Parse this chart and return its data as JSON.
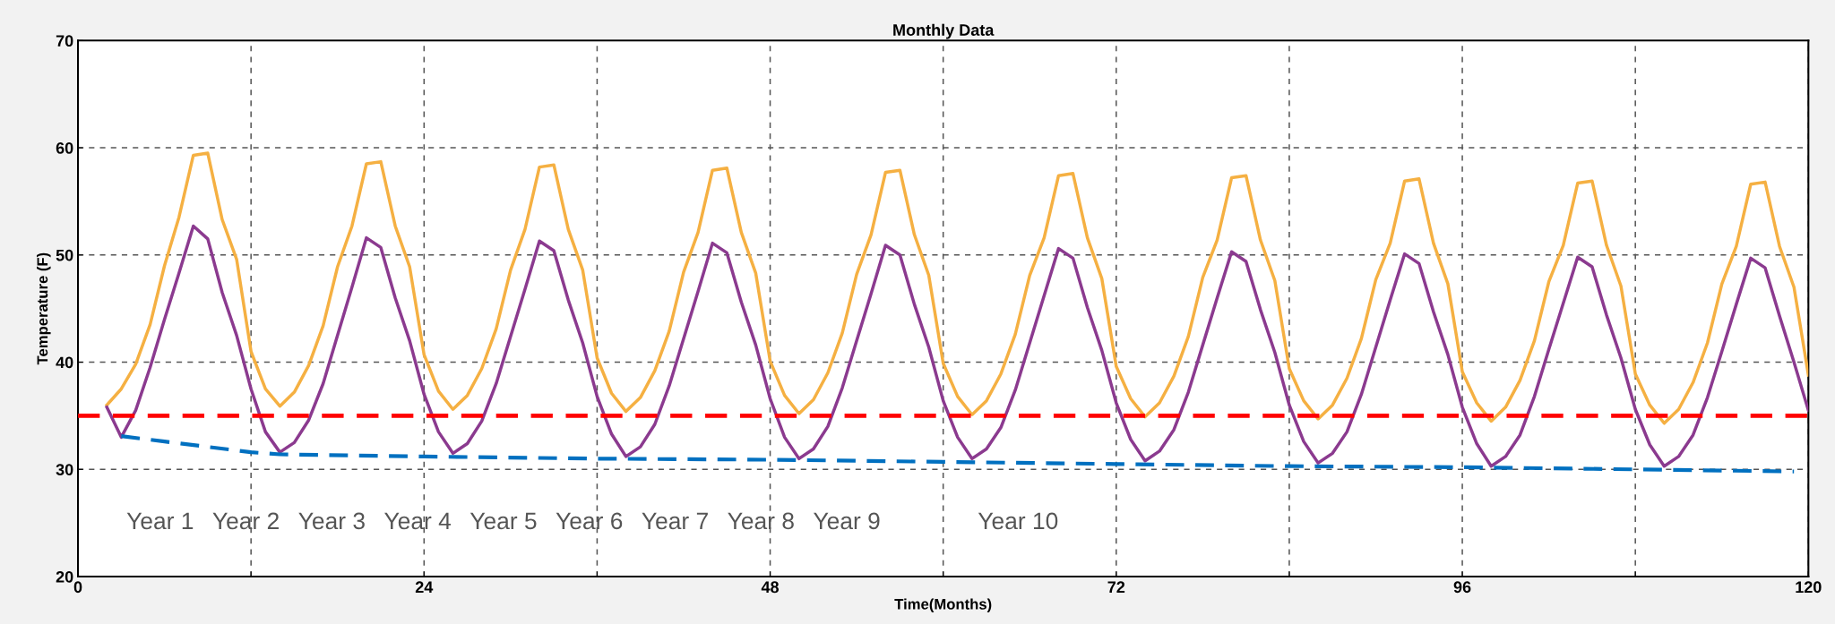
{
  "chart_data": {
    "type": "line",
    "title": "Monthly Data",
    "xlabel": "Time(Months)",
    "ylabel": "Temperature (F)",
    "xlim": [
      0,
      120
    ],
    "ylim": [
      20,
      70
    ],
    "xticks": [
      0,
      {
        "value": 12,
        "label": null
      },
      24,
      {
        "value": 36,
        "label": null
      },
      48,
      {
        "value": 60,
        "label": null
      },
      72,
      {
        "value": 84,
        "label": null
      },
      96,
      {
        "value": 108,
        "label": null
      },
      120
    ],
    "yticks": [
      20,
      30,
      40,
      50,
      60,
      70
    ],
    "grid": true,
    "legend": false,
    "marker": "none",
    "series": [
      {
        "color": "#f5b042",
        "line_style": "solid",
        "x": [
          2,
          3,
          4,
          5,
          6,
          7,
          8,
          9,
          10,
          11,
          12,
          13,
          14,
          15,
          16,
          17,
          18,
          19,
          20,
          21,
          22,
          23,
          24,
          25,
          26,
          27,
          28,
          29,
          30,
          31,
          32,
          33,
          34,
          35,
          36,
          37,
          38,
          39,
          40,
          41,
          42,
          43,
          44,
          45,
          46,
          47,
          48,
          49,
          50,
          51,
          52,
          53,
          54,
          55,
          56,
          57,
          58,
          59,
          60,
          61,
          62,
          63,
          64,
          65,
          66,
          67,
          68,
          69,
          70,
          71,
          72,
          73,
          74,
          75,
          76,
          77,
          78,
          79,
          80,
          81,
          82,
          83,
          84,
          85,
          86,
          87,
          88,
          89,
          90,
          91,
          92,
          93,
          94,
          95,
          96,
          97,
          98,
          99,
          100,
          101,
          102,
          103,
          104,
          105,
          106,
          107,
          108,
          109,
          110,
          111,
          112,
          113,
          114,
          115,
          116,
          117,
          118,
          119,
          120
        ],
        "values": [
          36.0,
          37.5,
          39.8,
          43.5,
          49.0,
          53.5,
          59.3,
          59.5,
          53.3,
          49.6,
          41.0,
          37.5,
          35.9,
          37.2,
          39.7,
          43.4,
          48.9,
          52.7,
          58.5,
          58.7,
          52.7,
          48.9,
          40.7,
          37.3,
          35.6,
          36.9,
          39.4,
          43.1,
          48.6,
          52.4,
          58.2,
          58.4,
          52.4,
          48.6,
          40.4,
          37.1,
          35.4,
          36.7,
          39.2,
          42.9,
          48.4,
          52.1,
          57.9,
          58.1,
          52.1,
          48.3,
          40.1,
          36.9,
          35.2,
          36.5,
          39.0,
          42.7,
          48.2,
          51.9,
          57.7,
          57.9,
          51.9,
          48.1,
          39.9,
          36.8,
          35.1,
          36.4,
          38.9,
          42.6,
          48.1,
          51.6,
          57.4,
          57.6,
          51.6,
          47.8,
          39.6,
          36.6,
          34.9,
          36.2,
          38.7,
          42.4,
          47.9,
          51.4,
          57.2,
          57.4,
          51.4,
          47.6,
          39.4,
          36.4,
          34.7,
          36.0,
          38.5,
          42.2,
          47.7,
          51.1,
          56.9,
          57.1,
          51.1,
          47.3,
          39.1,
          36.2,
          34.5,
          35.8,
          38.3,
          42.0,
          47.5,
          50.9,
          56.7,
          56.9,
          50.9,
          47.1,
          38.9,
          36.0,
          34.3,
          35.6,
          38.1,
          41.8,
          47.3,
          50.8,
          56.6,
          56.8,
          50.8,
          47.0,
          38.8
        ]
      },
      {
        "color": "#8b3a8f",
        "line_style": "solid",
        "x": [
          2,
          3,
          4,
          5,
          6,
          7,
          8,
          9,
          10,
          11,
          12,
          13,
          14,
          15,
          16,
          17,
          18,
          19,
          20,
          21,
          22,
          23,
          24,
          25,
          26,
          27,
          28,
          29,
          30,
          31,
          32,
          33,
          34,
          35,
          36,
          37,
          38,
          39,
          40,
          41,
          42,
          43,
          44,
          45,
          46,
          47,
          48,
          49,
          50,
          51,
          52,
          53,
          54,
          55,
          56,
          57,
          58,
          59,
          60,
          61,
          62,
          63,
          64,
          65,
          66,
          67,
          68,
          69,
          70,
          71,
          72,
          73,
          74,
          75,
          76,
          77,
          78,
          79,
          80,
          81,
          82,
          83,
          84,
          85,
          86,
          87,
          88,
          89,
          90,
          91,
          92,
          93,
          94,
          95,
          96,
          97,
          98,
          99,
          100,
          101,
          102,
          103,
          104,
          105,
          106,
          107,
          108,
          109,
          110,
          111,
          112,
          113,
          114,
          115,
          116,
          117,
          118,
          119,
          120
        ],
        "values": [
          35.8,
          33.0,
          35.5,
          39.5,
          44.0,
          48.3,
          52.7,
          51.5,
          46.5,
          42.5,
          37.5,
          33.5,
          31.6,
          32.5,
          34.6,
          38.0,
          42.5,
          47.0,
          51.6,
          50.7,
          46.0,
          42.0,
          37.0,
          33.5,
          31.5,
          32.4,
          34.5,
          38.0,
          42.4,
          46.8,
          51.3,
          50.4,
          45.8,
          41.8,
          36.8,
          33.3,
          31.2,
          32.1,
          34.2,
          37.8,
          42.2,
          46.6,
          51.1,
          50.2,
          45.6,
          41.6,
          36.6,
          33.0,
          31.0,
          31.9,
          34.0,
          37.6,
          42.0,
          46.4,
          50.9,
          50.0,
          45.4,
          41.4,
          36.4,
          33.0,
          31.0,
          31.9,
          33.9,
          37.4,
          41.8,
          46.2,
          50.6,
          49.7,
          45.1,
          41.1,
          36.2,
          32.8,
          30.8,
          31.7,
          33.7,
          37.2,
          41.6,
          46.0,
          50.3,
          49.4,
          44.9,
          40.9,
          36.0,
          32.6,
          30.6,
          31.5,
          33.5,
          37.0,
          41.4,
          45.8,
          50.1,
          49.2,
          44.7,
          40.7,
          35.8,
          32.4,
          30.3,
          31.2,
          33.2,
          36.8,
          41.2,
          45.5,
          49.8,
          48.9,
          44.4,
          40.4,
          35.6,
          32.3,
          30.3,
          31.2,
          33.2,
          36.7,
          41.0,
          45.4,
          49.7,
          48.8,
          44.3,
          40.0,
          35.5
        ]
      },
      {
        "color": "#0070c0",
        "line_style": "dashed",
        "x": [
          3,
          6,
          9,
          12,
          14,
          24,
          36,
          48,
          60,
          72,
          84,
          96,
          108,
          119
        ],
        "values": [
          33.1,
          32.6,
          32.1,
          31.6,
          31.4,
          31.2,
          31.0,
          30.9,
          30.7,
          30.5,
          30.3,
          30.2,
          30.0,
          29.8
        ]
      }
    ],
    "ref_lines": [
      {
        "axis": "y",
        "value": 35,
        "color": "#ff0000",
        "line_style": "dashed"
      }
    ],
    "annotations": [
      "Year 1",
      "Year 2",
      "Year 3",
      "Year 4",
      "Year 5",
      "Year 6",
      "Year 7",
      "Year 8",
      "Year 9",
      "Year 10"
    ]
  }
}
